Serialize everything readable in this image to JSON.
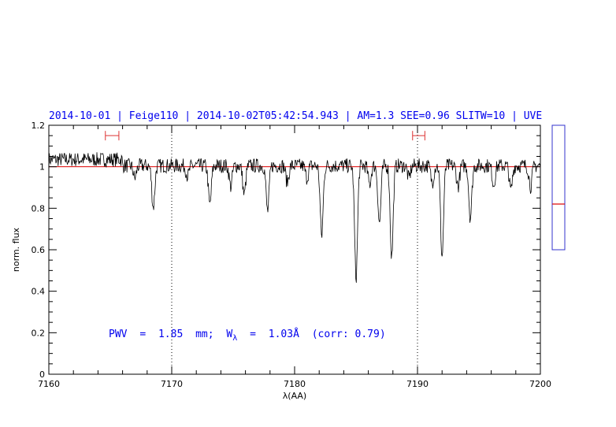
{
  "colors": {
    "header": "#0000ee",
    "annotation": "#0000ee",
    "spectrum": "#000000",
    "continuum": "#dd0000",
    "window_marker": "#dd3333",
    "side_box": "#3333cc",
    "side_marker": "#dd0000"
  },
  "header": {
    "date": "2014-10-01",
    "target": "Feige110",
    "timestamp": "2014-10-02T05:42:54.943",
    "airmass": "AM=1.3",
    "seeing": "SEE=0.96",
    "slit": "SLITW=10",
    "instrument": "UVE"
  },
  "annotation": {
    "pwv_label": "PWV",
    "equals": "=",
    "pwv_value": "1.85",
    "pwv_unit": "mm;",
    "w_symbol": "W",
    "w_subscript": "λ",
    "w_value": "1.03Å",
    "corr": "(corr: 0.79)"
  },
  "chart_data": {
    "type": "line",
    "title": "2014-10-01 | Feige110 | 2014-10-02T05:42:54.943 | AM=1.3 SEE=0.96 SLITW=10 | UVE",
    "xlabel": "λ(AA)",
    "ylabel": "norm. flux",
    "xlim": [
      7160,
      7200
    ],
    "ylim": [
      0,
      1.2
    ],
    "x_ticks": [
      7160,
      7170,
      7180,
      7190,
      7200
    ],
    "x_tick_labels": [
      "7160",
      "7170",
      "7180",
      "7190",
      "7200"
    ],
    "y_ticks": [
      0,
      0.2,
      0.4,
      0.6,
      0.8,
      1,
      1.2
    ],
    "y_tick_labels": [
      "0",
      "0.2",
      "0.4",
      "0.6",
      "0.8",
      "1",
      "1.2"
    ],
    "vertical_dotted_lines": [
      7170,
      7190
    ],
    "continuum_level": 1.0,
    "continuum_windows": [
      [
        7164.6,
        7165.7
      ],
      [
        7189.6,
        7190.6
      ]
    ],
    "continuum_window_y": 1.15,
    "side_indicator_value": 0.82,
    "absorption_lines": [
      {
        "x": 7167.0,
        "depth": 0.06
      },
      {
        "x": 7168.5,
        "depth": 0.2
      },
      {
        "x": 7171.3,
        "depth": 0.05
      },
      {
        "x": 7173.1,
        "depth": 0.19
      },
      {
        "x": 7174.8,
        "depth": 0.1
      },
      {
        "x": 7175.9,
        "depth": 0.14
      },
      {
        "x": 7177.8,
        "depth": 0.22
      },
      {
        "x": 7179.4,
        "depth": 0.08
      },
      {
        "x": 7181.0,
        "depth": 0.06
      },
      {
        "x": 7182.2,
        "depth": 0.34
      },
      {
        "x": 7185.0,
        "depth": 0.54
      },
      {
        "x": 7186.1,
        "depth": 0.09
      },
      {
        "x": 7186.9,
        "depth": 0.28
      },
      {
        "x": 7187.9,
        "depth": 0.44
      },
      {
        "x": 7189.3,
        "depth": 0.06
      },
      {
        "x": 7191.2,
        "depth": 0.08
      },
      {
        "x": 7192.0,
        "depth": 0.44
      },
      {
        "x": 7193.3,
        "depth": 0.1
      },
      {
        "x": 7194.3,
        "depth": 0.25
      },
      {
        "x": 7196.2,
        "depth": 0.09
      },
      {
        "x": 7197.6,
        "depth": 0.12
      },
      {
        "x": 7199.2,
        "depth": 0.1
      }
    ],
    "noise_amplitude": 0.035
  }
}
